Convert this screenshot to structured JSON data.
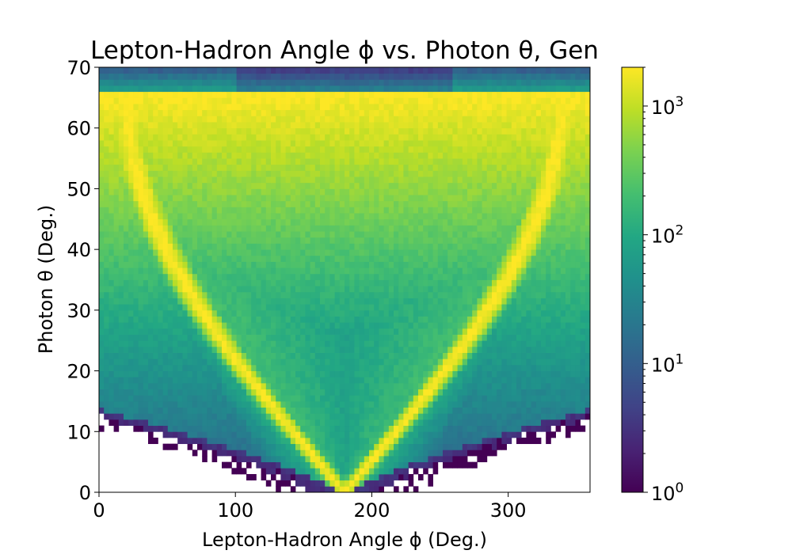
{
  "chart_data": {
    "type": "heatmap",
    "title": "Lepton-Hadron Angle ϕ vs. Photon θ, Gen",
    "xlabel": "Lepton-Hadron Angle ϕ (Deg.)",
    "ylabel": "Photon θ (Deg.)",
    "xlim": [
      0,
      360
    ],
    "ylim": [
      0,
      70
    ],
    "x_ticks": [
      0,
      100,
      200,
      300
    ],
    "y_ticks": [
      0,
      10,
      20,
      30,
      40,
      50,
      60,
      70
    ],
    "bins": {
      "x": 100,
      "y": 70
    },
    "colorbar": {
      "scale": "log",
      "colormap": "viridis",
      "range": [
        1,
        2000
      ],
      "ticks": [
        {
          "value": 1,
          "base": "10",
          "exp": "0"
        },
        {
          "value": 10,
          "base": "10",
          "exp": "1"
        },
        {
          "value": 100,
          "base": "10",
          "exp": "2"
        },
        {
          "value": 1000,
          "base": "10",
          "exp": "3"
        }
      ]
    },
    "description_of_density": "Counts peak (~2000) along two arcs from (180,0) rising to (~20,65) and (~340,65); ~100–200 in the central region; ~10–30 near the outer edges; sparse single counts below θ≈12 away from ϕ=180.",
    "ridge": {
      "center_phi": 180,
      "peak_theta": 66,
      "peak_phi_offset": 160
    },
    "peak_count": 2000,
    "empty_region": "white below ~10° except near ϕ=180"
  }
}
